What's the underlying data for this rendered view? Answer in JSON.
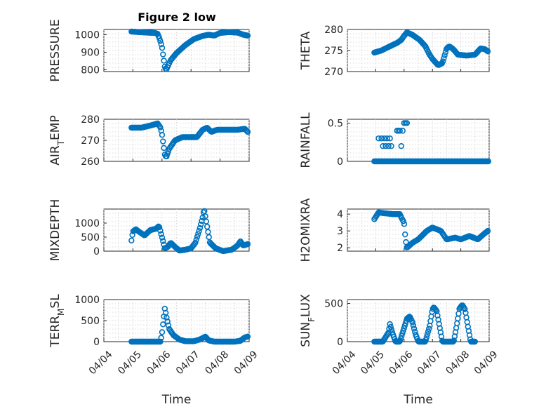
{
  "figure": {
    "title": "Figure 2 low"
  },
  "style": {
    "marker_color": "#0072BD",
    "axis_color": "#262626"
  },
  "chart_data": [
    {
      "type": "scatter",
      "id": "pressure",
      "title": "Figure 2 low",
      "ylabel": "PRESSURE",
      "ylabel_parts": [
        {
          "t": "PRESSURE",
          "sub": false
        }
      ],
      "xlabel": "",
      "xlim": [
        0,
        5
      ],
      "ylim": [
        790,
        1030
      ],
      "x_ticks": [
        0,
        1,
        2,
        3,
        4,
        5
      ],
      "x_tick_labels": [
        "04/04",
        "04/05",
        "04/06",
        "04/07",
        "04/08",
        "04/09"
      ],
      "y_ticks": [
        800,
        900,
        1000
      ],
      "y_tick_labels": [
        "800",
        "900",
        "1000"
      ],
      "show_x_tick_labels": false,
      "grid": true,
      "anchors": [
        [
          0.95,
          1018
        ],
        [
          1.2,
          1015
        ],
        [
          1.5,
          1012
        ],
        [
          1.75,
          1010
        ],
        [
          1.85,
          1005
        ],
        [
          1.9,
          985
        ],
        [
          1.95,
          960
        ],
        [
          2.0,
          930
        ],
        [
          2.05,
          870
        ],
        [
          2.1,
          815
        ],
        [
          2.15,
          800
        ],
        [
          2.2,
          820
        ],
        [
          2.3,
          855
        ],
        [
          2.5,
          895
        ],
        [
          2.8,
          940
        ],
        [
          3.1,
          975
        ],
        [
          3.4,
          993
        ],
        [
          3.6,
          1000
        ],
        [
          3.8,
          995
        ],
        [
          4.0,
          1010
        ],
        [
          4.3,
          1015
        ],
        [
          4.6,
          1012
        ],
        [
          4.8,
          1000
        ],
        [
          4.95,
          995
        ]
      ],
      "n_points": 130
    },
    {
      "type": "scatter",
      "id": "theta",
      "title": "",
      "ylabel": "THETA",
      "ylabel_parts": [
        {
          "t": "THETA",
          "sub": false
        }
      ],
      "xlabel": "",
      "xlim": [
        0,
        5
      ],
      "ylim": [
        270,
        280
      ],
      "x_ticks": [
        0,
        1,
        2,
        3,
        4,
        5
      ],
      "x_tick_labels": [
        "04/04",
        "04/05",
        "04/06",
        "04/07",
        "04/08",
        "04/09"
      ],
      "y_ticks": [
        270,
        275,
        280
      ],
      "y_tick_labels": [
        "270",
        "275",
        "280"
      ],
      "show_x_tick_labels": false,
      "grid": true,
      "anchors": [
        [
          0.95,
          274.5
        ],
        [
          1.2,
          275
        ],
        [
          1.5,
          276
        ],
        [
          1.75,
          276.8
        ],
        [
          1.9,
          277.5
        ],
        [
          2.0,
          278.5
        ],
        [
          2.1,
          279.3
        ],
        [
          2.3,
          278.7
        ],
        [
          2.55,
          277.5
        ],
        [
          2.75,
          276
        ],
        [
          2.9,
          274
        ],
        [
          3.0,
          273
        ],
        [
          3.2,
          271.5
        ],
        [
          3.35,
          272
        ],
        [
          3.5,
          275.5
        ],
        [
          3.6,
          276
        ],
        [
          3.75,
          275.2
        ],
        [
          3.9,
          274
        ],
        [
          4.2,
          273.8
        ],
        [
          4.5,
          274
        ],
        [
          4.7,
          275.5
        ],
        [
          4.85,
          275.3
        ],
        [
          4.95,
          274.8
        ]
      ],
      "n_points": 130
    },
    {
      "type": "scatter",
      "id": "air_temp",
      "title": "",
      "ylabel": "AIR_TEMP",
      "ylabel_parts": [
        {
          "t": "AIR",
          "sub": false
        },
        {
          "t": "T",
          "sub": true
        },
        {
          "t": "EMP",
          "sub": false
        }
      ],
      "xlabel": "",
      "xlim": [
        0,
        5
      ],
      "ylim": [
        260,
        280
      ],
      "x_ticks": [
        0,
        1,
        2,
        3,
        4,
        5
      ],
      "x_tick_labels": [
        "04/04",
        "04/05",
        "04/06",
        "04/07",
        "04/08",
        "04/09"
      ],
      "y_ticks": [
        260,
        270,
        280
      ],
      "y_tick_labels": [
        "260",
        "270",
        "280"
      ],
      "show_x_tick_labels": false,
      "grid": true,
      "anchors": [
        [
          0.95,
          276
        ],
        [
          1.3,
          276
        ],
        [
          1.6,
          277
        ],
        [
          1.85,
          278
        ],
        [
          1.95,
          276
        ],
        [
          2.0,
          273
        ],
        [
          2.05,
          268
        ],
        [
          2.1,
          263
        ],
        [
          2.15,
          262
        ],
        [
          2.25,
          266
        ],
        [
          2.45,
          270
        ],
        [
          2.7,
          271.5
        ],
        [
          3.0,
          271.5
        ],
        [
          3.2,
          271.5
        ],
        [
          3.4,
          275
        ],
        [
          3.55,
          276
        ],
        [
          3.7,
          274
        ],
        [
          3.9,
          275
        ],
        [
          4.3,
          275
        ],
        [
          4.6,
          275
        ],
        [
          4.85,
          275.5
        ],
        [
          4.95,
          274
        ]
      ],
      "n_points": 130
    },
    {
      "type": "scatter",
      "id": "rainfall",
      "title": "",
      "ylabel": "RAINFALL",
      "ylabel_parts": [
        {
          "t": "RAINFALL",
          "sub": false
        }
      ],
      "xlabel": "",
      "xlim": [
        0,
        5
      ],
      "ylim": [
        0,
        0.55
      ],
      "x_ticks": [
        0,
        1,
        2,
        3,
        4,
        5
      ],
      "x_tick_labels": [
        "04/04",
        "04/05",
        "04/06",
        "04/07",
        "04/08",
        "04/09"
      ],
      "y_ticks": [
        0,
        0.5
      ],
      "y_tick_labels": [
        "0",
        "0.5"
      ],
      "show_x_tick_labels": false,
      "grid": true,
      "points": [
        [
          1.1,
          0.3
        ],
        [
          1.2,
          0.3
        ],
        [
          1.25,
          0.2
        ],
        [
          1.3,
          0.3
        ],
        [
          1.35,
          0.2
        ],
        [
          1.4,
          0.3
        ],
        [
          1.45,
          0.2
        ],
        [
          1.5,
          0.3
        ],
        [
          1.55,
          0.2
        ],
        [
          1.75,
          0.4
        ],
        [
          1.8,
          0.4
        ],
        [
          1.85,
          0.4
        ],
        [
          1.9,
          0.2
        ],
        [
          1.95,
          0.4
        ],
        [
          2.0,
          0.5
        ],
        [
          2.05,
          0.5
        ],
        [
          2.1,
          0.5
        ]
      ],
      "baseline": {
        "from": 0.95,
        "to": 4.97,
        "value": 0,
        "n_points": 120
      }
    },
    {
      "type": "scatter",
      "id": "mixdepth",
      "title": "",
      "ylabel": "MIXDEPTH",
      "ylabel_parts": [
        {
          "t": "MIXDEPTH",
          "sub": false
        }
      ],
      "xlabel": "",
      "xlim": [
        0,
        5
      ],
      "ylim": [
        0,
        1500
      ],
      "x_ticks": [
        0,
        1,
        2,
        3,
        4,
        5
      ],
      "x_tick_labels": [
        "04/04",
        "04/05",
        "04/06",
        "04/07",
        "04/08",
        "04/09"
      ],
      "y_ticks": [
        0,
        500,
        1000
      ],
      "y_tick_labels": [
        "0",
        "500",
        "1000"
      ],
      "show_x_tick_labels": false,
      "grid": true,
      "anchors": [
        [
          0.95,
          380
        ],
        [
          1.0,
          700
        ],
        [
          1.1,
          780
        ],
        [
          1.2,
          700
        ],
        [
          1.4,
          560
        ],
        [
          1.6,
          750
        ],
        [
          1.8,
          800
        ],
        [
          1.9,
          900
        ],
        [
          2.0,
          500
        ],
        [
          2.1,
          100
        ],
        [
          2.2,
          150
        ],
        [
          2.3,
          300
        ],
        [
          2.45,
          150
        ],
        [
          2.6,
          20
        ],
        [
          2.8,
          50
        ],
        [
          3.0,
          100
        ],
        [
          3.15,
          300
        ],
        [
          3.3,
          800
        ],
        [
          3.4,
          1200
        ],
        [
          3.45,
          1500
        ],
        [
          3.55,
          900
        ],
        [
          3.65,
          300
        ],
        [
          3.85,
          100
        ],
        [
          4.1,
          0
        ],
        [
          4.4,
          50
        ],
        [
          4.6,
          200
        ],
        [
          4.7,
          350
        ],
        [
          4.8,
          200
        ],
        [
          4.95,
          250
        ]
      ],
      "n_points": 130
    },
    {
      "type": "scatter",
      "id": "h2omixra",
      "title": "",
      "ylabel": "H2OMIXRA",
      "ylabel_parts": [
        {
          "t": "H2OMIXRA",
          "sub": false
        }
      ],
      "xlabel": "",
      "xlim": [
        0,
        5
      ],
      "ylim": [
        1.8,
        4.3
      ],
      "x_ticks": [
        0,
        1,
        2,
        3,
        4,
        5
      ],
      "x_tick_labels": [
        "04/04",
        "04/05",
        "04/06",
        "04/07",
        "04/08",
        "04/09"
      ],
      "y_ticks": [
        2,
        3,
        4
      ],
      "y_tick_labels": [
        "2",
        "3",
        "4"
      ],
      "show_x_tick_labels": false,
      "grid": true,
      "anchors": [
        [
          0.95,
          3.7
        ],
        [
          1.1,
          4.1
        ],
        [
          1.3,
          4.05
        ],
        [
          1.6,
          4.0
        ],
        [
          1.85,
          4.0
        ],
        [
          1.9,
          3.8
        ],
        [
          2.0,
          3.5
        ],
        [
          2.05,
          2.5
        ],
        [
          2.1,
          2.0
        ],
        [
          2.3,
          2.3
        ],
        [
          2.5,
          2.5
        ],
        [
          2.8,
          3.0
        ],
        [
          3.0,
          3.2
        ],
        [
          3.3,
          3.0
        ],
        [
          3.5,
          2.5
        ],
        [
          3.8,
          2.6
        ],
        [
          4.0,
          2.5
        ],
        [
          4.3,
          2.7
        ],
        [
          4.6,
          2.5
        ],
        [
          4.8,
          2.8
        ],
        [
          4.95,
          3.0
        ]
      ],
      "n_points": 130
    },
    {
      "type": "scatter",
      "id": "terr_msl",
      "title": "",
      "ylabel": "TERR_MSL",
      "ylabel_parts": [
        {
          "t": "TERR",
          "sub": false
        },
        {
          "t": "M",
          "sub": true
        },
        {
          "t": "SL",
          "sub": false
        }
      ],
      "xlabel": "Time",
      "xlim": [
        0,
        5
      ],
      "ylim": [
        0,
        1000
      ],
      "x_ticks": [
        0,
        1,
        2,
        3,
        4,
        5
      ],
      "x_tick_labels": [
        "04/04",
        "04/05",
        "04/06",
        "04/07",
        "04/08",
        "04/09"
      ],
      "y_ticks": [
        0,
        500,
        1000
      ],
      "y_tick_labels": [
        "0",
        "500",
        "1000"
      ],
      "show_x_tick_labels": true,
      "grid": true,
      "anchors": [
        [
          0.95,
          0
        ],
        [
          1.7,
          0
        ],
        [
          1.95,
          0
        ],
        [
          2.0,
          200
        ],
        [
          2.05,
          500
        ],
        [
          2.1,
          800
        ],
        [
          2.15,
          600
        ],
        [
          2.25,
          300
        ],
        [
          2.4,
          150
        ],
        [
          2.6,
          50
        ],
        [
          2.8,
          10
        ],
        [
          3.1,
          10
        ],
        [
          3.3,
          50
        ],
        [
          3.5,
          120
        ],
        [
          3.6,
          30
        ],
        [
          3.8,
          0
        ],
        [
          4.5,
          0
        ],
        [
          4.7,
          20
        ],
        [
          4.85,
          100
        ],
        [
          4.95,
          120
        ]
      ],
      "n_points": 130
    },
    {
      "type": "scatter",
      "id": "sun_flux",
      "title": "",
      "ylabel": "SUN_FLUX",
      "ylabel_parts": [
        {
          "t": "SUN",
          "sub": false
        },
        {
          "t": "F",
          "sub": true
        },
        {
          "t": "LUX",
          "sub": false
        }
      ],
      "xlabel": "Time",
      "xlim": [
        0,
        5
      ],
      "ylim": [
        0,
        550
      ],
      "x_ticks": [
        0,
        1,
        2,
        3,
        4,
        5
      ],
      "x_tick_labels": [
        "04/04",
        "04/05",
        "04/06",
        "04/07",
        "04/08",
        "04/09"
      ],
      "y_ticks": [
        0,
        500
      ],
      "y_tick_labels": [
        "0",
        "500"
      ],
      "show_x_tick_labels": true,
      "grid": true,
      "anchors": [
        [
          0.95,
          0
        ],
        [
          1.25,
          0
        ],
        [
          1.35,
          60
        ],
        [
          1.45,
          120
        ],
        [
          1.5,
          230
        ],
        [
          1.6,
          100
        ],
        [
          1.7,
          0
        ],
        [
          1.85,
          0
        ],
        [
          2.0,
          180
        ],
        [
          2.1,
          300
        ],
        [
          2.2,
          330
        ],
        [
          2.3,
          250
        ],
        [
          2.4,
          100
        ],
        [
          2.5,
          0
        ],
        [
          2.75,
          0
        ],
        [
          2.9,
          200
        ],
        [
          3.0,
          420
        ],
        [
          3.05,
          450
        ],
        [
          3.15,
          400
        ],
        [
          3.25,
          200
        ],
        [
          3.35,
          0
        ],
        [
          3.75,
          0
        ],
        [
          3.85,
          200
        ],
        [
          3.95,
          430
        ],
        [
          4.05,
          480
        ],
        [
          4.15,
          420
        ],
        [
          4.25,
          200
        ],
        [
          4.35,
          0
        ],
        [
          4.5,
          0
        ]
      ],
      "n_points": 130
    }
  ]
}
